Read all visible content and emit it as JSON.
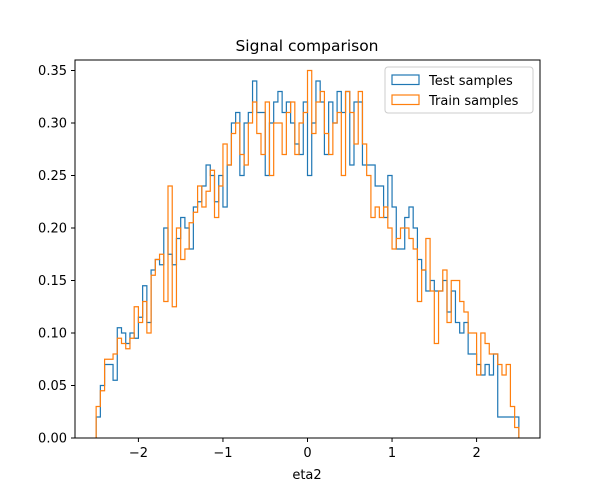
{
  "chart_data": {
    "type": "histogram-step",
    "title": "Signal comparison",
    "xlabel": "eta2",
    "ylabel": "",
    "xlim": [
      -2.75,
      2.75
    ],
    "ylim": [
      0.0,
      0.36
    ],
    "x_ticks": [
      -2,
      -1,
      0,
      1,
      2
    ],
    "x_tick_labels": [
      "−2",
      "−1",
      "0",
      "1",
      "2"
    ],
    "y_ticks": [
      0.0,
      0.05,
      0.1,
      0.15,
      0.2,
      0.25,
      0.3,
      0.35
    ],
    "y_tick_labels": [
      "0.00",
      "0.05",
      "0.10",
      "0.15",
      "0.20",
      "0.25",
      "0.30",
      "0.35"
    ],
    "grid": false,
    "legend_position": "top-right",
    "bin_edges": [
      -2.5,
      -2.45,
      -2.4,
      -2.35,
      -2.3,
      -2.25,
      -2.2,
      -2.15,
      -2.1,
      -2.05,
      -2.0,
      -1.95,
      -1.9,
      -1.85,
      -1.8,
      -1.75,
      -1.7,
      -1.65,
      -1.6,
      -1.55,
      -1.5,
      -1.45,
      -1.4,
      -1.35,
      -1.3,
      -1.25,
      -1.2,
      -1.15,
      -1.1,
      -1.05,
      -1.0,
      -0.95,
      -0.9,
      -0.85,
      -0.8,
      -0.75,
      -0.7,
      -0.65,
      -0.6,
      -0.55,
      -0.5,
      -0.45,
      -0.4,
      -0.35,
      -0.3,
      -0.25,
      -0.2,
      -0.15,
      -0.1,
      -0.05,
      0.0,
      0.05,
      0.1,
      0.15,
      0.2,
      0.25,
      0.3,
      0.35,
      0.4,
      0.45,
      0.5,
      0.55,
      0.6,
      0.65,
      0.7,
      0.75,
      0.8,
      0.85,
      0.9,
      0.95,
      1.0,
      1.05,
      1.1,
      1.15,
      1.2,
      1.25,
      1.3,
      1.35,
      1.4,
      1.45,
      1.5,
      1.55,
      1.6,
      1.65,
      1.7,
      1.75,
      1.8,
      1.85,
      1.9,
      1.95,
      2.0,
      2.05,
      2.1,
      2.15,
      2.2,
      2.25,
      2.3,
      2.35,
      2.4,
      2.45,
      2.5
    ],
    "series": [
      {
        "name": "Test samples",
        "color": "#1f77b4",
        "values": [
          0.02,
          0.05,
          0.07,
          0.07,
          0.055,
          0.105,
          0.1,
          0.09,
          0.1,
          0.095,
          0.115,
          0.145,
          0.11,
          0.16,
          0.17,
          0.165,
          0.2,
          0.175,
          0.165,
          0.19,
          0.21,
          0.2,
          0.18,
          0.22,
          0.225,
          0.24,
          0.26,
          0.25,
          0.225,
          0.25,
          0.22,
          0.26,
          0.3,
          0.31,
          0.25,
          0.3,
          0.31,
          0.34,
          0.31,
          0.31,
          0.25,
          0.3,
          0.32,
          0.33,
          0.31,
          0.32,
          0.3,
          0.28,
          0.27,
          0.32,
          0.25,
          0.3,
          0.34,
          0.32,
          0.27,
          0.32,
          0.3,
          0.33,
          0.31,
          0.33,
          0.26,
          0.32,
          0.32,
          0.26,
          0.26,
          0.26,
          0.24,
          0.24,
          0.21,
          0.25,
          0.22,
          0.18,
          0.18,
          0.21,
          0.22,
          0.2,
          0.17,
          0.16,
          0.14,
          0.15,
          0.14,
          0.14,
          0.15,
          0.12,
          0.14,
          0.11,
          0.1,
          0.11,
          0.08,
          0.08,
          0.07,
          0.06,
          0.07,
          0.06,
          0.08,
          0.02,
          0.02,
          0.02,
          0.02,
          0.02
        ]
      },
      {
        "name": "Train samples",
        "color": "#ff7f0e",
        "values": [
          0.03,
          0.045,
          0.075,
          0.075,
          0.08,
          0.095,
          0.09,
          0.085,
          0.095,
          0.125,
          0.11,
          0.13,
          0.1,
          0.155,
          0.17,
          0.175,
          0.13,
          0.24,
          0.125,
          0.2,
          0.17,
          0.18,
          0.205,
          0.215,
          0.24,
          0.22,
          0.235,
          0.255,
          0.21,
          0.24,
          0.28,
          0.26,
          0.29,
          0.3,
          0.27,
          0.26,
          0.3,
          0.32,
          0.29,
          0.27,
          0.32,
          0.25,
          0.3,
          0.3,
          0.27,
          0.31,
          0.32,
          0.27,
          0.3,
          0.31,
          0.35,
          0.29,
          0.32,
          0.33,
          0.29,
          0.27,
          0.3,
          0.31,
          0.25,
          0.33,
          0.31,
          0.28,
          0.33,
          0.28,
          0.25,
          0.21,
          0.22,
          0.21,
          0.22,
          0.2,
          0.18,
          0.19,
          0.2,
          0.2,
          0.19,
          0.18,
          0.13,
          0.16,
          0.19,
          0.14,
          0.09,
          0.14,
          0.16,
          0.11,
          0.15,
          0.15,
          0.13,
          0.12,
          0.1,
          0.1,
          0.06,
          0.1,
          0.09,
          0.08,
          0.08,
          0.07,
          0.06,
          0.07,
          0.03,
          0.01
        ]
      }
    ]
  }
}
